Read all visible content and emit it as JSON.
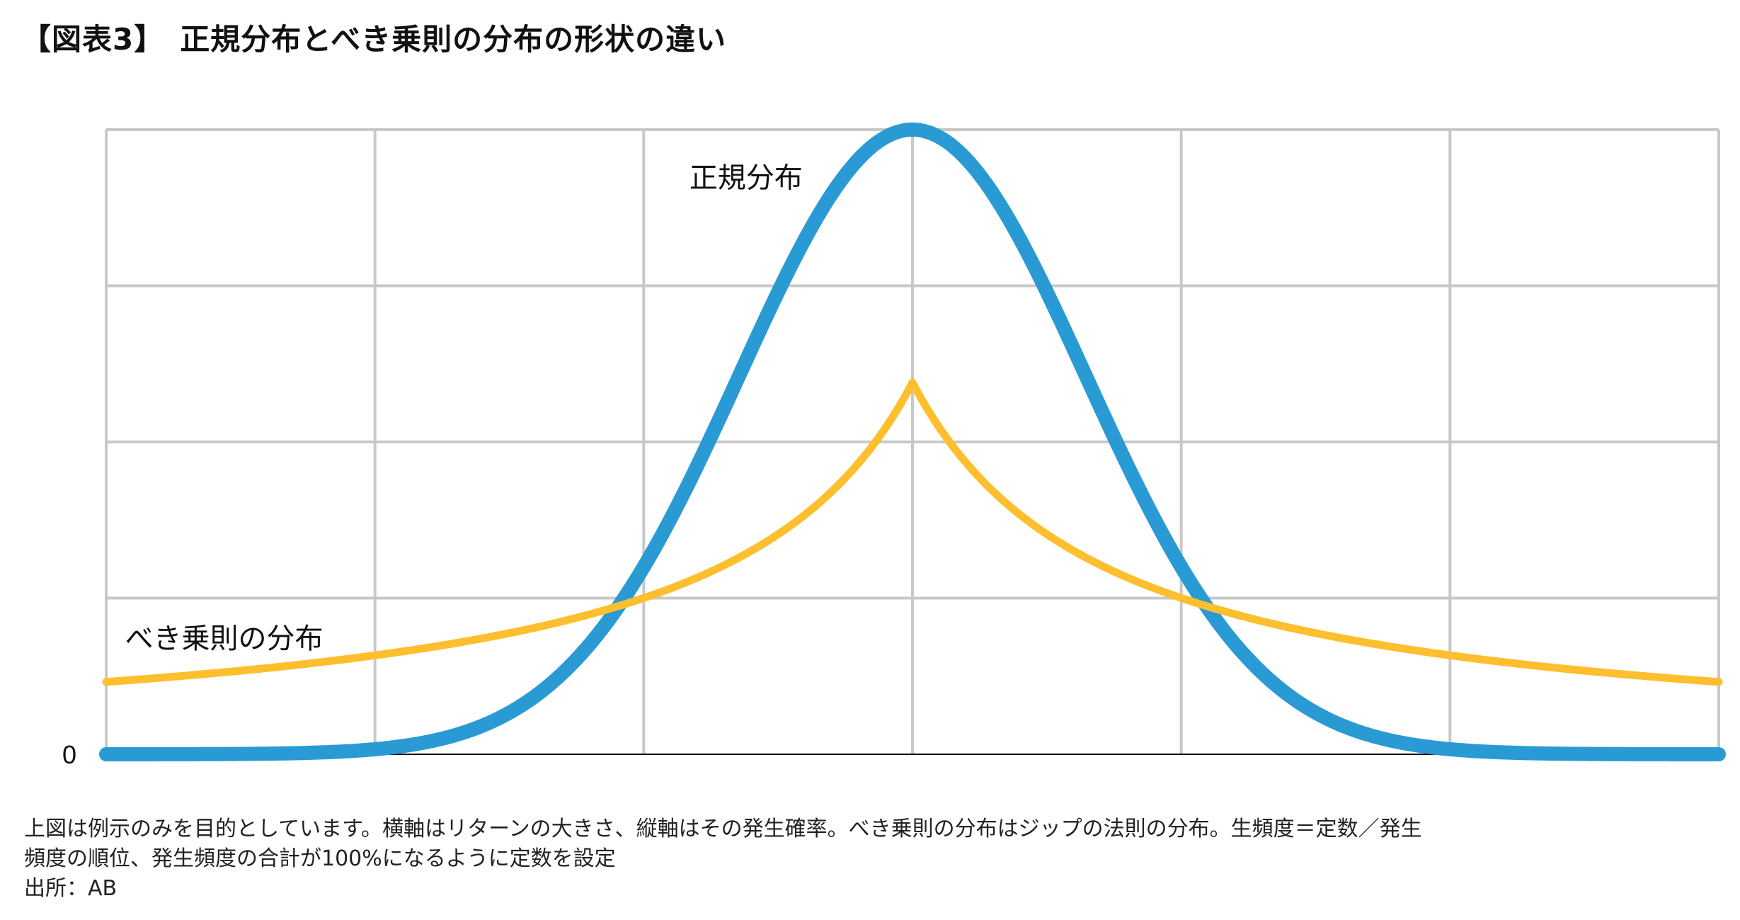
{
  "title": "【図表3】　正規分布とべき乗則の分布の形状の違い",
  "chart_data": {
    "type": "line",
    "xlabel": "",
    "ylabel": "",
    "xlim": [
      -3,
      3
    ],
    "ylim": [
      0,
      4
    ],
    "x_gridlines": [
      -3,
      -2,
      -1,
      0,
      1,
      2,
      3
    ],
    "y_gridlines": [
      0,
      1,
      2,
      3,
      4
    ],
    "grid": true,
    "y_tick_labels": [
      "0"
    ],
    "series": [
      {
        "name": "正規分布",
        "color": "#2A9AD5",
        "curve": "gaussian",
        "peak_x": 0,
        "peak_y": 4.0,
        "x": [
          -3,
          -2.5,
          -2,
          -1.5,
          -1,
          -0.75,
          -0.5,
          -0.25,
          0,
          0.25,
          0.5,
          0.75,
          1,
          1.5,
          2,
          2.5,
          3
        ],
        "y": [
          0,
          0.0,
          0.01,
          0.16,
          0.98,
          1.92,
          2.96,
          3.7,
          4.0,
          3.7,
          2.96,
          1.92,
          0.98,
          0.16,
          0.01,
          0.0,
          0
        ]
      },
      {
        "name": "べき乗則の分布",
        "color": "#FDBF2D",
        "curve": "power-law",
        "peak_x": 0,
        "peak_y": 2.38,
        "x": [
          -3,
          -2.5,
          -2,
          -1.5,
          -1,
          -0.75,
          -0.5,
          -0.25,
          0,
          0.25,
          0.5,
          0.75,
          1,
          1.5,
          2,
          2.5,
          3
        ],
        "y": [
          0.35,
          0.41,
          0.49,
          0.62,
          0.85,
          1.03,
          1.31,
          1.77,
          2.38,
          1.77,
          1.31,
          1.03,
          0.85,
          0.62,
          0.49,
          0.41,
          0.35
        ]
      }
    ]
  },
  "notes": [
    "上図は例示のみを目的としています。横軸はリターンの大きさ、縦軸はその発生確率。べき乗則の分布はジップの法則の分布。生頻度＝定数／発生",
    "頻度の順位、発生頻度の合計が100%になるように定数を設定",
    "出所：AB"
  ]
}
